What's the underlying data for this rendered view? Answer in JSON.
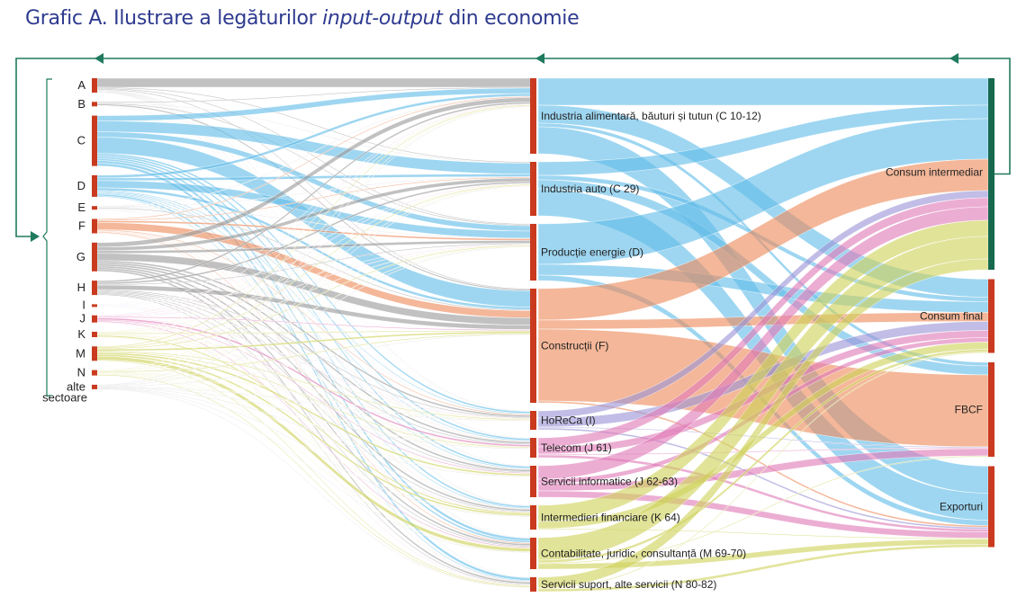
{
  "title": {
    "part1": "Grafic A. Ilustrare a legăturilor ",
    "italic": "input-output",
    "part2": " din economie"
  },
  "colors": {
    "title": "#2e3a8f",
    "node": "#c93a1f",
    "node_intermediate": "#16694f",
    "arrow": "#1f7a5e",
    "gray": "#9b9b9b",
    "blue": "#63bde8",
    "orange": "#ee8a5a",
    "purple": "#9b95d6",
    "pink": "#e07ab8",
    "yellow": "#cfd25a"
  },
  "left_nodes": [
    {
      "label": "A",
      "value": 16,
      "color": "gray"
    },
    {
      "label": "B",
      "value": 5,
      "color": "gray"
    },
    {
      "label": "C",
      "value": 56,
      "color": "blue"
    },
    {
      "label": "D",
      "value": 24,
      "color": "blue"
    },
    {
      "label": "E",
      "value": 4,
      "color": "gray"
    },
    {
      "label": "F",
      "value": 16,
      "color": "orange"
    },
    {
      "label": "G",
      "value": 32,
      "color": "gray"
    },
    {
      "label": "H",
      "value": 16,
      "color": "gray"
    },
    {
      "label": "I",
      "value": 2,
      "color": "purple"
    },
    {
      "label": "J",
      "value": 8,
      "color": "pink"
    },
    {
      "label": "K",
      "value": 6,
      "color": "yellow"
    },
    {
      "label": "M",
      "value": 16,
      "color": "yellow"
    },
    {
      "label": "N",
      "value": 6,
      "color": "yellow"
    },
    {
      "label": "alte sectoare",
      "value": 5,
      "color": "gray"
    }
  ],
  "mid_nodes": [
    {
      "label": "Industria alimentară, băuturi și tutun (C 10-12)",
      "color": "blue"
    },
    {
      "label": "Industria auto (C 29)",
      "color": "blue"
    },
    {
      "label": "Producție energie (D)",
      "color": "blue"
    },
    {
      "label": "Construcții (F)",
      "color": "orange"
    },
    {
      "label": "HoReCa (I)",
      "color": "purple"
    },
    {
      "label": "Telecom (J 61)",
      "color": "pink"
    },
    {
      "label": "Servicii informatice (J 62-63)",
      "color": "pink"
    },
    {
      "label": "Intermedieri financiare (K 64)",
      "color": "yellow"
    },
    {
      "label": "Contabilitate, juridic, consultanță (M 69-70)",
      "color": "yellow"
    },
    {
      "label": "Servicii suport, alte servicii (N 80-82)",
      "color": "yellow"
    }
  ],
  "right_nodes": [
    {
      "label": "Consum intermediar"
    },
    {
      "label": "Consum final"
    },
    {
      "label": "FBCF"
    },
    {
      "label": "Exporturi"
    }
  ],
  "flows_left_to_mid": [
    [
      10,
      1,
      1,
      1,
      0.5,
      0.5,
      0.5,
      0.5,
      0.5,
      0.5
    ],
    [
      1,
      0.5,
      1,
      1.5,
      0.2,
      0.2,
      0.2,
      0.2,
      0.1,
      0.1
    ],
    [
      6,
      12,
      6,
      18,
      2,
      2,
      2,
      2,
      3,
      3
    ],
    [
      3,
      3,
      8,
      3,
      1,
      1,
      1,
      1,
      2,
      1
    ],
    [
      0.5,
      0.5,
      0.5,
      1,
      0.3,
      0.3,
      0.2,
      0.2,
      0.3,
      0.2
    ],
    [
      1,
      1,
      2,
      8,
      1,
      0.5,
      0.5,
      0.5,
      1,
      0.5
    ],
    [
      5,
      4,
      3,
      8,
      2,
      2,
      2,
      2,
      2,
      2
    ],
    [
      2,
      2,
      1,
      5,
      1,
      1,
      1,
      1,
      1,
      1
    ],
    [
      0.2,
      0.2,
      0.2,
      0.2,
      0.2,
      0.2,
      0.2,
      0.2,
      0.2,
      0.2
    ],
    [
      0.5,
      0.5,
      0.5,
      1,
      0.5,
      2,
      1,
      0.5,
      1,
      0.5
    ],
    [
      0.5,
      0.5,
      0.5,
      1,
      0.5,
      0.5,
      0.5,
      1.5,
      0.5,
      0
    ],
    [
      1,
      1,
      1,
      2,
      1,
      1,
      2,
      2,
      4,
      1
    ],
    [
      0.5,
      0.5,
      0.5,
      1,
      0.5,
      0.5,
      0.5,
      0.5,
      0.5,
      1
    ],
    [
      0.5,
      0.5,
      0.5,
      0.5,
      0.5,
      0.5,
      0.5,
      0.5,
      0.5,
      0.5
    ]
  ],
  "flows_mid_to_right": [
    [
      30,
      20,
      4,
      30
    ],
    [
      15,
      5,
      10,
      30
    ],
    [
      45,
      12,
      0,
      6
    ],
    [
      35,
      10,
      80,
      2
    ],
    [
      8,
      10,
      1,
      2
    ],
    [
      10,
      8,
      1,
      3
    ],
    [
      15,
      5,
      8,
      7
    ],
    [
      18,
      8,
      0,
      1
    ],
    [
      25,
      3,
      1,
      6
    ],
    [
      12,
      1,
      0,
      3
    ]
  ]
}
